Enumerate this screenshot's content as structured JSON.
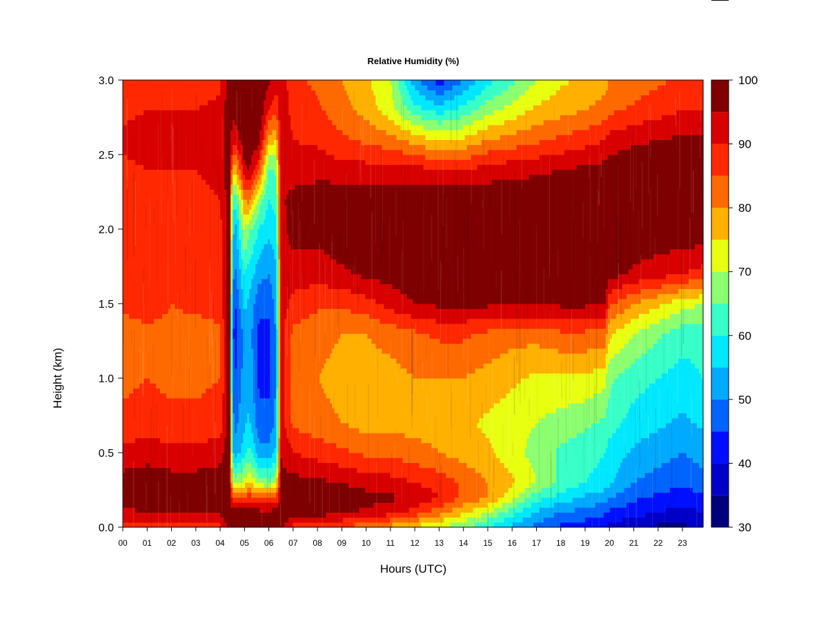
{
  "chart_data": {
    "type": "heatmap",
    "title": "Relative Humidity (%)",
    "xlabel": "Hours (UTC)",
    "ylabel": "Height (km)",
    "x_ticks": [
      "00",
      "01",
      "02",
      "03",
      "04",
      "05",
      "06",
      "07",
      "08",
      "09",
      "10",
      "11",
      "12",
      "13",
      "14",
      "15",
      "16",
      "17",
      "18",
      "19",
      "20",
      "21",
      "22",
      "23"
    ],
    "y_ticks": [
      "0.0",
      "0.5",
      "1.0",
      "1.5",
      "2.0",
      "2.5",
      "3.0"
    ],
    "xlim": [
      0,
      23.85
    ],
    "ylim": [
      0,
      3.0
    ],
    "colorbar": {
      "ticks": [
        "30",
        "40",
        "50",
        "60",
        "70",
        "80",
        "90",
        "100"
      ],
      "levels": [
        30,
        35,
        40,
        45,
        50,
        55,
        60,
        65,
        70,
        75,
        80,
        85,
        90,
        95,
        100
      ],
      "colors": [
        "#00007f",
        "#0000c8",
        "#0010ff",
        "#0064ff",
        "#00aaff",
        "#00e8ff",
        "#38ffc8",
        "#8cff70",
        "#e8ff10",
        "#ffb000",
        "#ff6a00",
        "#ff2800",
        "#d80000",
        "#7f0000"
      ]
    },
    "x_hours": [
      0,
      1,
      2,
      3,
      4,
      4.4,
      4.5,
      4.6,
      5.0,
      5.2,
      5.6,
      6.0,
      6.3,
      6.5,
      7,
      8,
      9,
      10,
      11,
      12,
      13,
      14,
      15,
      16,
      17,
      18,
      19,
      19.8,
      20,
      21,
      22,
      23,
      23.85
    ],
    "y_heights_km": [
      0.0,
      0.1,
      0.2,
      0.3,
      0.5,
      0.7,
      1.0,
      1.3,
      1.5,
      1.7,
      2.0,
      2.2,
      2.4,
      2.6,
      2.8,
      3.0
    ],
    "rh_percent": [
      [
        86,
        94,
        97,
        97,
        92,
        86,
        84,
        83,
        86,
        86,
        86,
        89,
        89,
        91,
        89,
        87
      ],
      [
        88,
        95,
        98,
        98,
        93,
        87,
        85,
        84,
        87,
        87,
        87,
        90,
        90,
        92,
        90,
        88
      ],
      [
        87,
        96,
        98,
        97,
        92,
        86,
        84,
        84,
        85,
        85,
        86,
        89,
        90,
        92,
        90,
        88
      ],
      [
        87,
        96,
        98,
        97,
        92,
        86,
        84,
        83,
        86,
        86,
        87,
        89,
        90,
        92,
        90,
        88
      ],
      [
        88,
        96,
        99,
        98,
        93,
        87,
        85,
        84,
        87,
        88,
        88,
        90,
        91,
        92,
        91,
        89
      ],
      [
        99,
        99,
        99,
        99,
        99,
        99,
        99,
        99,
        99,
        99,
        99,
        99,
        99,
        99,
        99,
        99
      ],
      [
        97,
        97,
        88,
        72,
        58,
        55,
        50,
        48,
        50,
        55,
        60,
        64,
        80,
        92,
        96,
        96
      ],
      [
        97,
        97,
        85,
        68,
        52,
        48,
        45,
        42,
        44,
        48,
        52,
        60,
        76,
        92,
        97,
        97
      ],
      [
        97,
        97,
        86,
        72,
        58,
        54,
        52,
        52,
        56,
        60,
        70,
        80,
        94,
        98,
        99,
        99
      ],
      [
        97,
        97,
        88,
        75,
        62,
        56,
        54,
        52,
        54,
        58,
        66,
        82,
        95,
        99,
        99,
        99
      ],
      [
        97,
        97,
        85,
        68,
        52,
        46,
        44,
        44,
        46,
        52,
        60,
        68,
        85,
        97,
        99,
        99
      ],
      [
        97,
        97,
        84,
        66,
        52,
        46,
        44,
        44,
        46,
        50,
        56,
        60,
        64,
        78,
        90,
        96
      ],
      [
        97,
        97,
        86,
        70,
        56,
        52,
        50,
        50,
        52,
        54,
        58,
        62,
        66,
        75,
        86,
        92
      ],
      [
        98,
        98,
        97,
        96,
        95,
        93,
        92,
        92,
        93,
        93,
        93,
        94,
        94,
        94,
        94,
        94
      ],
      [
        88,
        98,
        99,
        97,
        90,
        84,
        83,
        84,
        88,
        93,
        97,
        97,
        92,
        90,
        88,
        86
      ],
      [
        88,
        97,
        98,
        96,
        88,
        82,
        80,
        82,
        86,
        92,
        97,
        98,
        93,
        89,
        86,
        84
      ],
      [
        84,
        96,
        98,
        95,
        86,
        80,
        78,
        80,
        86,
        94,
        99,
        99,
        92,
        86,
        82,
        80
      ],
      [
        82,
        94,
        97,
        93,
        84,
        78,
        78,
        80,
        88,
        96,
        99,
        99,
        92,
        84,
        78,
        76
      ],
      [
        78,
        92,
        96,
        92,
        84,
        78,
        78,
        82,
        92,
        97,
        99,
        99,
        92,
        82,
        72,
        70
      ],
      [
        74,
        88,
        94,
        90,
        82,
        78,
        80,
        84,
        95,
        98,
        99,
        99,
        92,
        78,
        62,
        52
      ],
      [
        70,
        82,
        90,
        88,
        80,
        78,
        80,
        86,
        96,
        99,
        99,
        99,
        90,
        74,
        58,
        42
      ],
      [
        66,
        76,
        84,
        84,
        78,
        76,
        80,
        86,
        96,
        99,
        99,
        99,
        90,
        76,
        62,
        50
      ],
      [
        60,
        70,
        80,
        80,
        76,
        74,
        78,
        84,
        96,
        99,
        99,
        99,
        92,
        80,
        68,
        58
      ],
      [
        54,
        62,
        72,
        76,
        72,
        72,
        76,
        82,
        96,
        99,
        99,
        99,
        93,
        82,
        72,
        64
      ],
      [
        48,
        54,
        62,
        70,
        68,
        70,
        74,
        82,
        96,
        99,
        99,
        99,
        94,
        84,
        76,
        70
      ],
      [
        44,
        50,
        58,
        64,
        64,
        68,
        74,
        84,
        96,
        99,
        99,
        99,
        95,
        86,
        78,
        74
      ],
      [
        42,
        48,
        54,
        60,
        62,
        66,
        74,
        84,
        96,
        99,
        99,
        99,
        96,
        88,
        80,
        76
      ],
      [
        40,
        46,
        52,
        58,
        60,
        64,
        72,
        84,
        95,
        99,
        99,
        99,
        97,
        90,
        82,
        78
      ],
      [
        38,
        44,
        50,
        56,
        58,
        62,
        66,
        76,
        86,
        97,
        99,
        99,
        98,
        92,
        84,
        80
      ],
      [
        36,
        42,
        46,
        50,
        54,
        58,
        62,
        70,
        80,
        94,
        99,
        99,
        99,
        94,
        86,
        82
      ],
      [
        34,
        40,
        44,
        48,
        52,
        56,
        60,
        66,
        76,
        92,
        99,
        99,
        99,
        95,
        88,
        84
      ],
      [
        34,
        38,
        42,
        46,
        50,
        54,
        58,
        62,
        72,
        90,
        99,
        99,
        99,
        96,
        90,
        86
      ],
      [
        36,
        40,
        44,
        48,
        52,
        56,
        60,
        62,
        70,
        88,
        99,
        99,
        99,
        96,
        90,
        86
      ]
    ],
    "legend": "colorbar-right",
    "grid": false
  }
}
